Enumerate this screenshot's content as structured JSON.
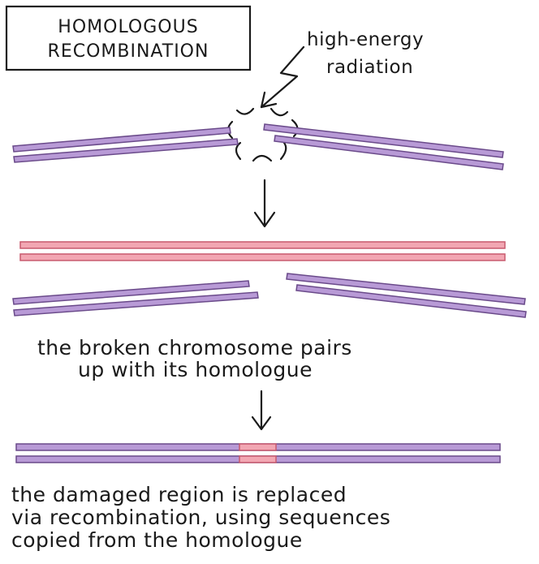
{
  "title_lines": [
    "HOMOLOGOUS",
    "RECOMBINATION"
  ],
  "radiation_label_lines": [
    "high-energy",
    "radiation"
  ],
  "caption_pairing_lines": [
    "the broken chromosome pairs",
    "up with its homologue"
  ],
  "caption_repair_lines": [
    "the damaged region is replaced",
    "via recombination, using sequences",
    "copied from the homologue"
  ],
  "colors": {
    "damaged_chromosome": "#b89ad6",
    "homologue": "#f2a7b3",
    "ink": "#1a1a1a"
  },
  "icons": [
    "lightning-bolt-icon",
    "down-arrow-icon",
    "break-mark-icon"
  ]
}
